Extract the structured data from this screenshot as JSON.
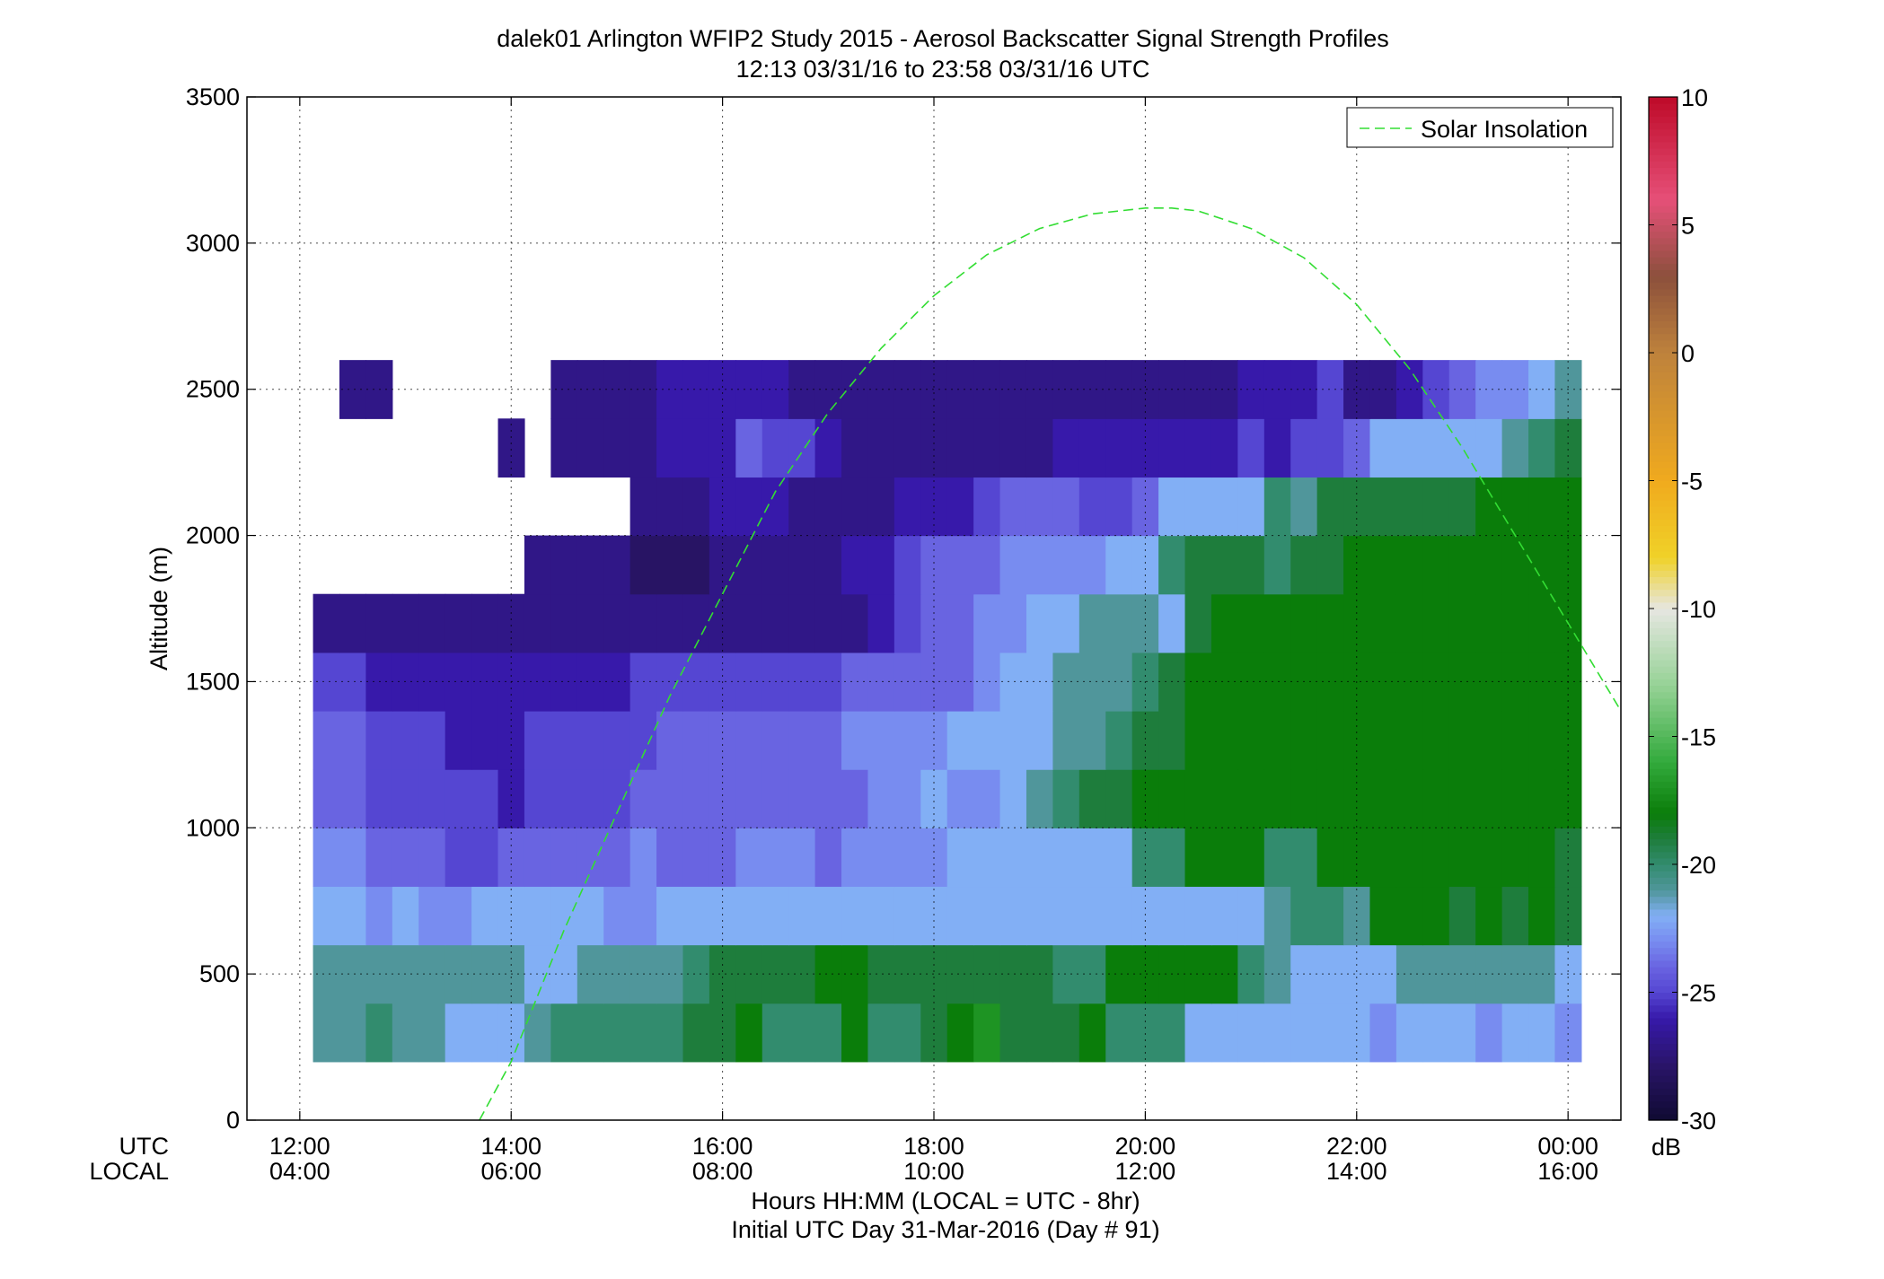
{
  "chart_data": {
    "type": "heatmap",
    "title": "dalek01 Arlington WFIP2 Study 2015 - Aerosol Backscatter Signal Strength Profiles",
    "subtitle": "12:13 03/31/16 to 23:58 03/31/16  UTC",
    "xlabel": "Hours HH:MM  (LOCAL = UTC - 8hr)",
    "xlabel2": "Initial UTC Day 31-Mar-2016 (Day # 91)",
    "ylabel": "Altitude (m)",
    "x_row_labels": [
      "UTC",
      "LOCAL"
    ],
    "xlim_hours_utc": [
      11.5,
      24.5
    ],
    "ylim": [
      0,
      3500
    ],
    "x_ticks": [
      {
        "value": 12,
        "utc": "12:00",
        "local": "04:00"
      },
      {
        "value": 14,
        "utc": "14:00",
        "local": "06:00"
      },
      {
        "value": 16,
        "utc": "16:00",
        "local": "08:00"
      },
      {
        "value": 18,
        "utc": "18:00",
        "local": "10:00"
      },
      {
        "value": 20,
        "utc": "20:00",
        "local": "12:00"
      },
      {
        "value": 22,
        "utc": "22:00",
        "local": "14:00"
      },
      {
        "value": 24,
        "utc": "00:00",
        "local": "16:00"
      }
    ],
    "y_ticks": [
      "0",
      "500",
      "1000",
      "1500",
      "2000",
      "2500",
      "3000",
      "3500"
    ],
    "grid": true,
    "colorbar": {
      "label": "dB",
      "range": [
        -30,
        10
      ],
      "ticks": [
        "10",
        "5",
        "0",
        "-5",
        "-10",
        "-15",
        "-20",
        "-25",
        "-30"
      ]
    },
    "legend": {
      "entries": [
        "Solar Insolation"
      ],
      "placement": "top-right"
    },
    "series": [
      {
        "name": "Solar Insolation",
        "style": "dashed",
        "color": "#33dd33",
        "x": [
          13.7,
          14.0,
          14.5,
          15.0,
          15.5,
          16.0,
          16.5,
          17.0,
          17.5,
          18.0,
          18.5,
          19.0,
          19.5,
          20.0,
          20.25,
          20.5,
          21.0,
          21.5,
          22.0,
          22.5,
          23.0,
          23.5,
          24.0,
          24.5
        ],
        "y": [
          0,
          200,
          650,
          1050,
          1450,
          1800,
          2150,
          2420,
          2640,
          2820,
          2960,
          3050,
          3100,
          3120,
          3120,
          3110,
          3050,
          2950,
          2790,
          2570,
          2300,
          2000,
          1700,
          1400
        ]
      }
    ],
    "heatmap": {
      "time_step_hours": 0.25,
      "first_column_center_hours": 12.25,
      "altitude_bins_m": [
        200,
        300,
        400,
        500,
        600,
        700,
        800,
        900,
        1000,
        1100,
        1200,
        1300,
        1400,
        1500,
        1600,
        1700,
        1800,
        1900,
        2000,
        2100,
        2200,
        2300,
        2400,
        2500
      ],
      "units": "dB",
      "profiles": [
        {
          "t0": 12.125,
          "dt": 0.25,
          "alt": 200,
          "values": [
            -21,
            -21,
            -20,
            -21,
            -21,
            -22,
            -22,
            -22,
            -21,
            -20,
            -20,
            -20,
            -20,
            -20,
            -19,
            -19,
            -18,
            -20,
            -20,
            -20,
            -18,
            -20,
            -20,
            -19,
            -18,
            -17,
            -19,
            -19,
            -19,
            -18,
            -20,
            -20,
            -20,
            -22,
            -22,
            -22,
            -22,
            -22,
            -22,
            -22,
            -23,
            -22,
            -22,
            -22,
            -23,
            -22,
            -22,
            -23
          ]
        },
        {
          "t0": 12.125,
          "dt": 0.25,
          "alt": 400,
          "values": [
            -21,
            -21,
            -21,
            -21,
            -21,
            -21,
            -21,
            -21,
            -22,
            -22,
            -21,
            -21,
            -21,
            -21,
            -20,
            -19,
            -19,
            -19,
            -19,
            -18,
            -18,
            -19,
            -19,
            -19,
            -19,
            -19,
            -19,
            -19,
            -20,
            -20,
            -18,
            -18,
            -18,
            -18,
            -18,
            -20,
            -21,
            -22,
            -22,
            -22,
            -22,
            -21,
            -21,
            -21,
            -21,
            -21,
            -21,
            -22
          ]
        },
        {
          "t0": 12.125,
          "dt": 0.25,
          "alt": 600,
          "values": [
            -22,
            -22,
            -23,
            -22,
            -23,
            -23,
            -22,
            -22,
            -22,
            -22,
            -22,
            -23,
            -23,
            -22,
            -22,
            -22,
            -22,
            -22,
            -22,
            -22,
            -22,
            -22,
            -22,
            -22,
            -22,
            -22,
            -22,
            -22,
            -22,
            -22,
            -22,
            -22,
            -22,
            -22,
            -22,
            -22,
            -21,
            -20,
            -20,
            -21,
            -18,
            -18,
            -18,
            -19,
            -18,
            -19,
            -18,
            -19
          ]
        },
        {
          "t0": 12.125,
          "dt": 0.25,
          "alt": 800,
          "values": [
            -23,
            -23,
            -24,
            -24,
            -24,
            -25,
            -25,
            -24,
            -24,
            -24,
            -24,
            -24,
            -23,
            -24,
            -24,
            -24,
            -23,
            -23,
            -23,
            -24,
            -23,
            -23,
            -23,
            -23,
            -22,
            -22,
            -22,
            -22,
            -22,
            -22,
            -22,
            -20,
            -20,
            -18,
            -18,
            -18,
            -20,
            -20,
            -18,
            -18,
            -18,
            -18,
            -18,
            -18,
            -18,
            -18,
            -18,
            -19
          ]
        },
        {
          "t0": 12.125,
          "dt": 0.25,
          "alt": 1000,
          "values": [
            -24,
            -24,
            -25,
            -25,
            -25,
            -25,
            -25,
            -26,
            -25,
            -25,
            -25,
            -25,
            -24,
            -24,
            -24,
            -24,
            -24,
            -24,
            -24,
            -24,
            -24,
            -23,
            -23,
            -22,
            -23,
            -23,
            -22,
            -21,
            -20,
            -19,
            -19,
            -18,
            -18,
            -18,
            -18,
            -18,
            -18,
            -18,
            -18,
            -18,
            -18,
            -18,
            -18,
            -18,
            -18,
            -18,
            -18,
            -18
          ]
        },
        {
          "t0": 12.125,
          "dt": 0.25,
          "alt": 1200,
          "values": [
            -24,
            -24,
            -25,
            -25,
            -25,
            -26,
            -26,
            -26,
            -25,
            -25,
            -25,
            -25,
            -25,
            -24,
            -24,
            -24,
            -24,
            -24,
            -24,
            -24,
            -23,
            -23,
            -23,
            -23,
            -22,
            -22,
            -22,
            -22,
            -21,
            -21,
            -20,
            -19,
            -19,
            -18,
            -18,
            -18,
            -18,
            -18,
            -18,
            -18,
            -18,
            -18,
            -18,
            -18,
            -18,
            -18,
            -18,
            -18
          ]
        },
        {
          "t0": 12.125,
          "dt": 0.25,
          "alt": 1400,
          "values": [
            -25,
            -25,
            -26,
            -26,
            -26,
            -26,
            -26,
            -26,
            -26,
            -26,
            -26,
            -26,
            -25,
            -25,
            -25,
            -25,
            -25,
            -25,
            -25,
            -25,
            -24,
            -24,
            -24,
            -24,
            -24,
            -23,
            -22,
            -22,
            -21,
            -21,
            -21,
            -20,
            -19,
            -18,
            -18,
            -18,
            -18,
            -18,
            -18,
            -18,
            -18,
            -18,
            -18,
            -18,
            -18,
            -18,
            -18,
            -18
          ]
        },
        {
          "t0": 12.125,
          "dt": 0.25,
          "alt": 1600,
          "values": [
            -27,
            -27,
            -27,
            -27,
            -27,
            -27,
            -27,
            -27,
            -27,
            -27,
            -27,
            -27,
            -27,
            -27,
            -27,
            -27,
            -27,
            -27,
            -27,
            -27,
            -27,
            -26,
            -25,
            -24,
            -24,
            -23,
            -23,
            -22,
            -22,
            -21,
            -21,
            -21,
            -22,
            -19,
            -18,
            -18,
            -18,
            -18,
            -18,
            -18,
            -18,
            -18,
            -18,
            -18,
            -18,
            -18,
            -18,
            -18
          ]
        },
        {
          "t0": 12.125,
          "dt": 0.25,
          "alt": 1800,
          "values": [
            null,
            null,
            null,
            null,
            null,
            null,
            null,
            null,
            -27,
            -27,
            -27,
            -27,
            -28,
            -28,
            -28,
            -27,
            -27,
            -27,
            -27,
            -27,
            -26,
            -26,
            -25,
            -24,
            -24,
            -24,
            -23,
            -23,
            -23,
            -23,
            -22,
            -22,
            -20,
            -19,
            -19,
            -19,
            -20,
            -19,
            -19,
            -18,
            -18,
            -18,
            -18,
            -18,
            -18,
            -18,
            -18,
            -18
          ]
        },
        {
          "t0": 12.125,
          "dt": 0.25,
          "alt": 2000,
          "values": [
            null,
            null,
            null,
            null,
            null,
            null,
            null,
            null,
            null,
            null,
            null,
            null,
            -27,
            -27,
            -27,
            -26,
            -26,
            -26,
            -27,
            -27,
            -27,
            -27,
            -26,
            -26,
            -26,
            -25,
            -24,
            -24,
            -24,
            -25,
            -25,
            -24,
            -22,
            -22,
            -22,
            -22,
            -20,
            -21,
            -19,
            -19,
            -19,
            -19,
            -19,
            -19,
            -18,
            -18,
            -18,
            -18
          ]
        },
        {
          "t0": 12.125,
          "dt": 0.25,
          "alt": 2200,
          "values": [
            null,
            null,
            null,
            null,
            null,
            null,
            null,
            -27,
            null,
            -27,
            -27,
            -27,
            -27,
            -26,
            -26,
            -26,
            -24,
            -25,
            -25,
            -26,
            -27,
            -27,
            -27,
            -27,
            -27,
            -27,
            -27,
            -27,
            -26,
            -26,
            -26,
            -26,
            -26,
            -26,
            -26,
            -25,
            -26,
            -25,
            -25,
            -24,
            -22,
            -22,
            -22,
            -22,
            -22,
            -21,
            -20,
            -19
          ]
        },
        {
          "t0": 12.125,
          "dt": 0.25,
          "alt": 2400,
          "values": [
            null,
            -27,
            -27,
            null,
            null,
            null,
            null,
            null,
            null,
            -27,
            -27,
            -27,
            -27,
            -26,
            -26,
            -26,
            -26,
            -26,
            -27,
            -27,
            -27,
            -27,
            -27,
            -27,
            -27,
            -27,
            -27,
            -27,
            -27,
            -27,
            -27,
            -27,
            -27,
            -27,
            -27,
            -26,
            -26,
            -26,
            -25,
            -27,
            -27,
            -26,
            -25,
            -24,
            -23,
            -23,
            -22,
            -21
          ]
        }
      ]
    }
  }
}
